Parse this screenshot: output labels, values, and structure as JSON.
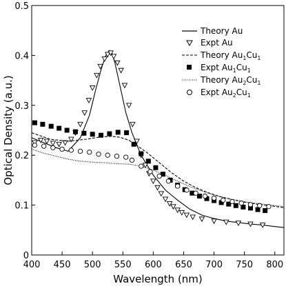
{
  "chart_data": {
    "type": "line",
    "xlabel": "Wavelength (nm)",
    "ylabel": "Optical Density (a.u.)",
    "xlim": [
      400,
      815
    ],
    "ylim": [
      0,
      0.5
    ],
    "xticks": [
      400,
      450,
      500,
      550,
      600,
      650,
      700,
      750,
      800
    ],
    "yticks": [
      0,
      0.1,
      0.2,
      0.3,
      0.4,
      0.5
    ],
    "xtick_labels": [
      "400",
      "450",
      "500",
      "550",
      "600",
      "650",
      "700",
      "750",
      "800"
    ],
    "ytick_labels": [
      "0",
      "0.1",
      "0.2",
      "0.3",
      "0.4",
      "0.5"
    ],
    "legend_position": "top-right",
    "series": [
      {
        "name": "Theory Au",
        "kind": "line",
        "style": "solid",
        "x": [
          400,
          420,
          440,
          460,
          480,
          495,
          505,
          515,
          522,
          528,
          532,
          537,
          545,
          555,
          565,
          580,
          600,
          620,
          640,
          660,
          680,
          700,
          720,
          740,
          760,
          780,
          800,
          815
        ],
        "y": [
          0.235,
          0.225,
          0.215,
          0.208,
          0.235,
          0.28,
          0.33,
          0.375,
          0.4,
          0.41,
          0.405,
          0.385,
          0.34,
          0.285,
          0.245,
          0.2,
          0.16,
          0.13,
          0.11,
          0.092,
          0.08,
          0.073,
          0.068,
          0.065,
          0.062,
          0.06,
          0.057,
          0.055
        ]
      },
      {
        "name": "Expt Au",
        "kind": "markers",
        "marker": "triangle-down-open",
        "x": [
          405,
          415,
          425,
          435,
          445,
          455,
          465,
          472,
          480,
          487,
          494,
          500,
          507,
          513,
          520,
          525,
          530,
          535,
          541,
          547,
          553,
          560,
          566,
          573,
          580,
          587,
          593,
          600,
          607,
          613,
          620,
          627,
          633,
          640,
          647,
          655,
          665,
          680,
          700,
          720,
          740,
          760,
          780
        ],
        "y": [
          0.225,
          0.23,
          0.228,
          0.224,
          0.222,
          0.225,
          0.232,
          0.245,
          0.262,
          0.285,
          0.31,
          0.335,
          0.36,
          0.378,
          0.393,
          0.402,
          0.405,
          0.398,
          0.385,
          0.37,
          0.34,
          0.3,
          0.262,
          0.228,
          0.2,
          0.18,
          0.163,
          0.148,
          0.135,
          0.123,
          0.112,
          0.103,
          0.097,
          0.09,
          0.085,
          0.08,
          0.076,
          0.072,
          0.068,
          0.066,
          0.064,
          0.062,
          0.06
        ]
      },
      {
        "name": "Theory Au1Cu1",
        "label_main": "Theory Au",
        "label_sub1": "1",
        "label_mid": "Cu",
        "label_sub2": "1",
        "kind": "line",
        "style": "dashed",
        "x": [
          400,
          430,
          460,
          490,
          510,
          530,
          545,
          560,
          575,
          590,
          610,
          630,
          650,
          670,
          690,
          710,
          730,
          750,
          770,
          790,
          815
        ],
        "y": [
          0.245,
          0.232,
          0.228,
          0.232,
          0.236,
          0.238,
          0.236,
          0.23,
          0.218,
          0.205,
          0.185,
          0.165,
          0.148,
          0.135,
          0.125,
          0.117,
          0.111,
          0.106,
          0.102,
          0.099,
          0.095
        ]
      },
      {
        "name": "Expt Au1Cu1",
        "label_main": "Expt Au",
        "label_sub1": "1",
        "label_mid": "Cu",
        "label_sub2": "1",
        "kind": "markers",
        "marker": "square-filled",
        "x": [
          405,
          418,
          432,
          445,
          458,
          472,
          486,
          500,
          514,
          528,
          542,
          556,
          568,
          580,
          592,
          604,
          616,
          628,
          640,
          652,
          664,
          676,
          688,
          700,
          712,
          724,
          736,
          748,
          760,
          772,
          784
        ],
        "y": [
          0.265,
          0.262,
          0.258,
          0.254,
          0.25,
          0.247,
          0.244,
          0.242,
          0.24,
          0.243,
          0.246,
          0.245,
          0.222,
          0.203,
          0.188,
          0.175,
          0.162,
          0.15,
          0.14,
          0.131,
          0.124,
          0.118,
          0.113,
          0.109,
          0.105,
          0.102,
          0.099,
          0.096,
          0.094,
          0.091,
          0.089
        ]
      },
      {
        "name": "Theory Au2Cu1",
        "label_main": "Theory Au",
        "label_sub1": "2",
        "label_mid": "Cu",
        "label_sub2": "1",
        "kind": "line",
        "style": "dotted",
        "x": [
          400,
          420,
          440,
          460,
          480,
          500,
          520,
          540,
          560,
          580,
          600,
          620,
          640,
          660,
          680,
          700,
          720,
          740,
          760,
          780,
          800,
          815
        ],
        "y": [
          0.212,
          0.204,
          0.198,
          0.192,
          0.188,
          0.186,
          0.185,
          0.183,
          0.182,
          0.178,
          0.17,
          0.16,
          0.148,
          0.137,
          0.128,
          0.12,
          0.114,
          0.109,
          0.105,
          0.102,
          0.099,
          0.097
        ]
      },
      {
        "name": "Expt Au2Cu1",
        "label_main": "Expt Au",
        "label_sub1": "2",
        "label_mid": "Cu",
        "label_sub2": "1",
        "kind": "markers",
        "marker": "circle-open",
        "x": [
          405,
          420,
          435,
          450,
          465,
          480,
          495,
          510,
          525,
          540,
          555,
          565,
          580,
          595,
          610,
          625,
          640,
          655,
          670,
          685,
          700,
          715,
          730,
          745,
          760,
          775,
          790
        ],
        "y": [
          0.22,
          0.218,
          0.215,
          0.212,
          0.21,
          0.208,
          0.206,
          0.202,
          0.2,
          0.198,
          0.196,
          0.19,
          0.178,
          0.167,
          0.158,
          0.148,
          0.138,
          0.13,
          0.124,
          0.118,
          0.114,
          0.11,
          0.107,
          0.104,
          0.101,
          0.099,
          0.097
        ]
      }
    ]
  }
}
